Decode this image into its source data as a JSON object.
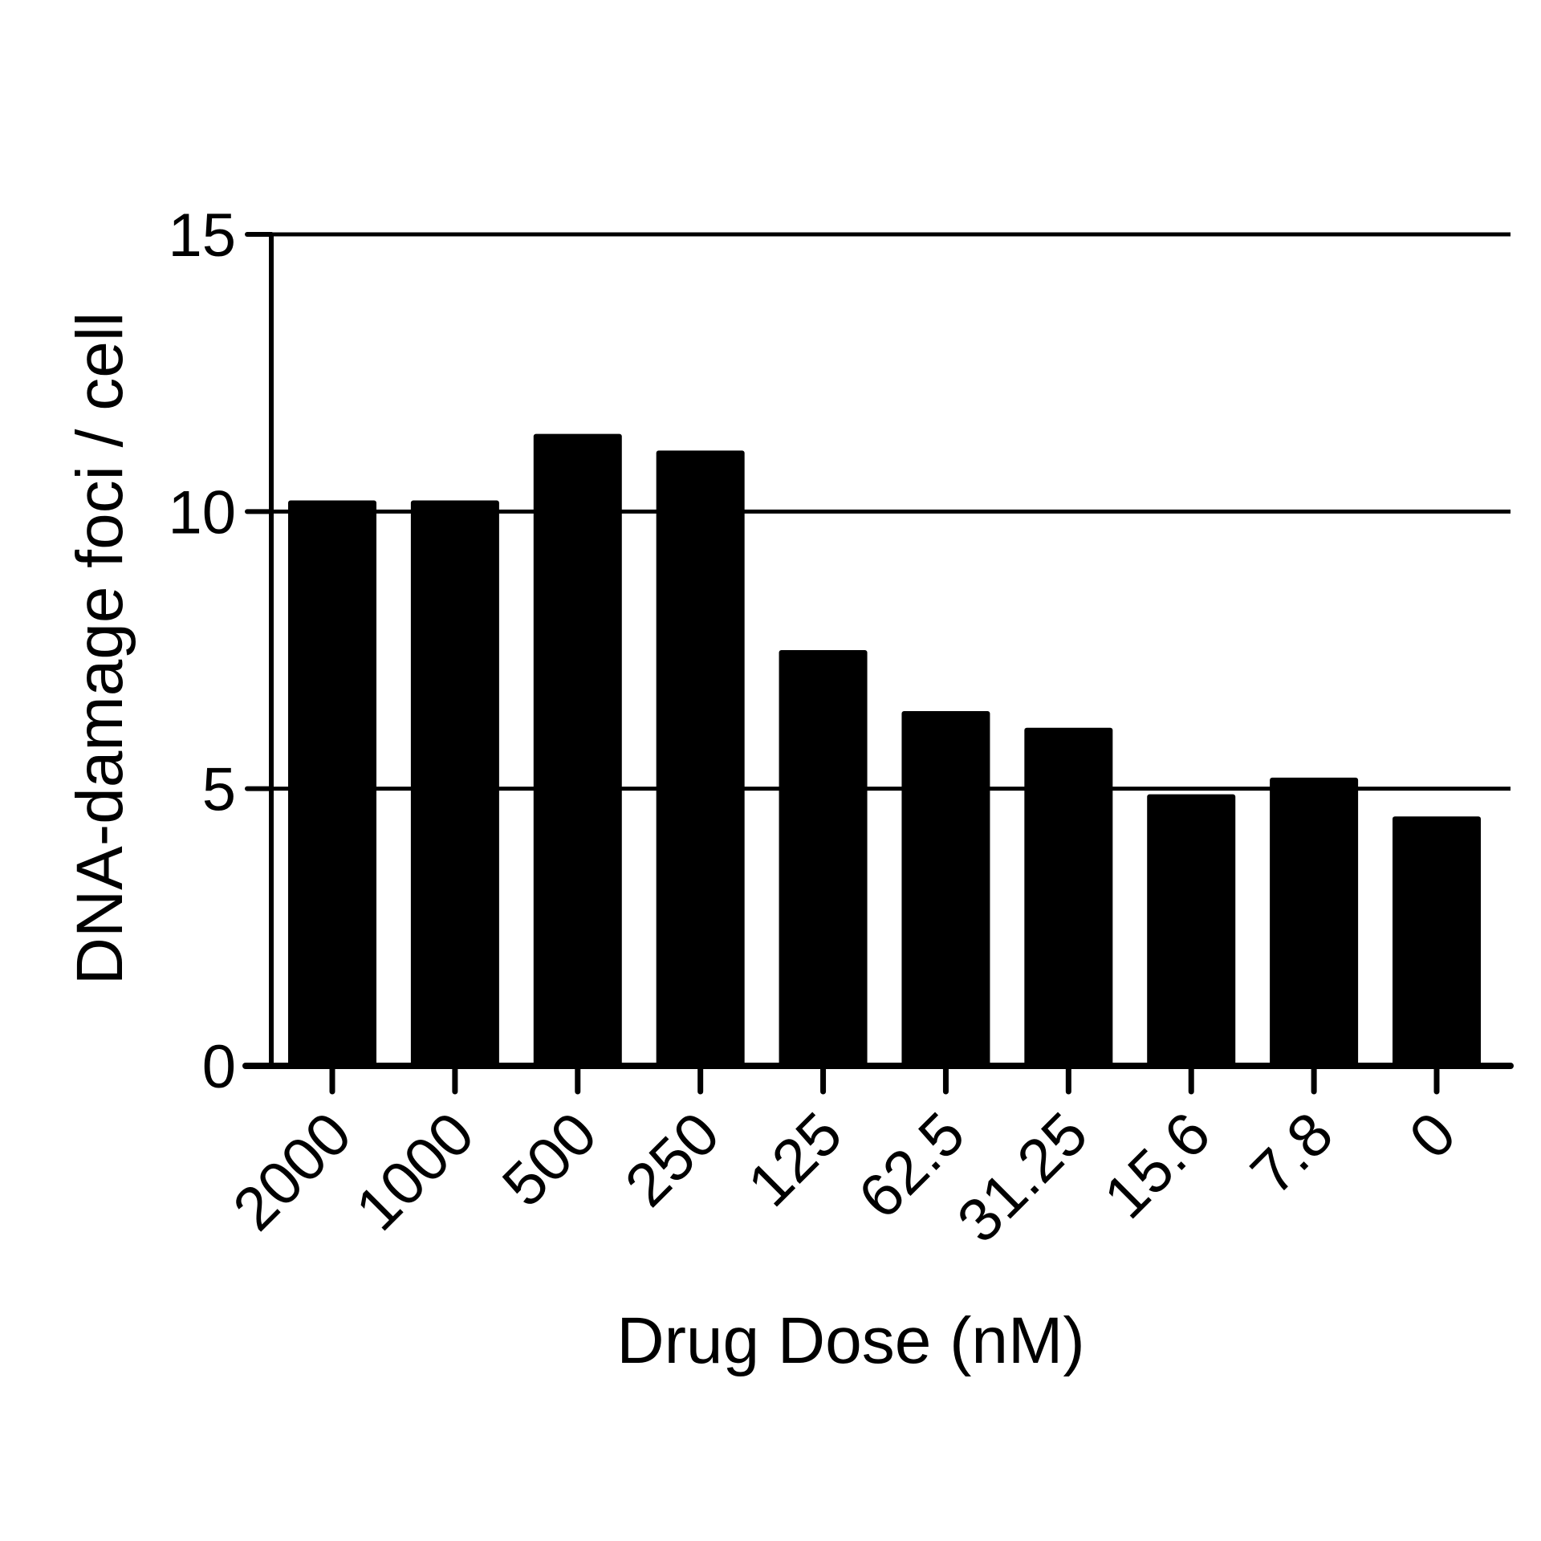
{
  "chart_data": {
    "type": "bar",
    "title": "",
    "xlabel": "Drug Dose (nM)",
    "ylabel": "DNA-damage foci / cell",
    "categories": [
      "2000",
      "1000",
      "500",
      "250",
      "125",
      "62.5",
      "31.25",
      "15.6",
      "7.8",
      "0"
    ],
    "values": [
      10.2,
      10.2,
      11.4,
      11.1,
      7.5,
      6.4,
      6.1,
      4.9,
      5.2,
      4.5
    ],
    "ylim": [
      0,
      15
    ],
    "yticks": [
      0,
      5,
      10,
      15
    ],
    "grid": true,
    "legend": "none",
    "colors": {
      "bar": "#000000",
      "axis": "#000000",
      "grid": "#000000",
      "background": "#ffffff"
    }
  }
}
